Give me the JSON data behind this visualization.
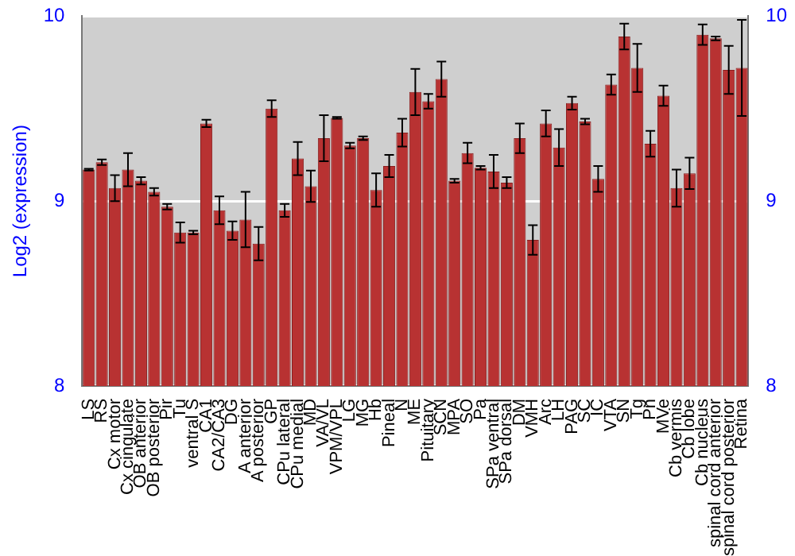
{
  "chart_data": {
    "type": "bar",
    "ylabel": "Log2 (expression)",
    "categories": [
      "LS",
      "RS",
      "Cx motor",
      "Cx cingulate",
      "OB anterior",
      "OB posterior",
      "Pir",
      "Tu",
      "ventral S",
      "CA1",
      "CA2/CA3",
      "DG",
      "A anterior",
      "A posterior",
      "GP",
      "CPu lateral",
      "CPu medial",
      "MD",
      "VA/VL",
      "VPM/VPL",
      "LG",
      "MG",
      "Hb",
      "Pineal",
      "N",
      "ME",
      "Pituitary",
      "SCN",
      "MPA",
      "SO",
      "Pa",
      "SPa ventral",
      "SPa dorsal",
      "DM",
      "VMH",
      "Arc",
      "LH",
      "PAG",
      "SC",
      "IC",
      "VTA",
      "SN",
      "Tg",
      "Pn",
      "MVe",
      "Cb vermis",
      "Cb lobe",
      "Cb nucleus",
      "spinal cord anterior",
      "spinal cord posterior",
      "Retina"
    ],
    "values": [
      9.17,
      9.21,
      9.07,
      9.17,
      9.11,
      9.05,
      8.97,
      8.83,
      8.83,
      9.42,
      8.95,
      8.84,
      8.9,
      8.77,
      9.5,
      8.95,
      9.23,
      9.08,
      9.34,
      9.45,
      9.3,
      9.34,
      9.06,
      9.19,
      9.37,
      9.59,
      9.54,
      9.66,
      9.11,
      9.26,
      9.18,
      9.16,
      9.1,
      9.34,
      8.79,
      9.42,
      9.29,
      9.53,
      9.43,
      9.12,
      9.63,
      9.89,
      9.72,
      9.31,
      9.57,
      9.07,
      9.15,
      9.9,
      9.88,
      9.71,
      9.72
    ],
    "errors": [
      0.005,
      0.015,
      0.07,
      0.09,
      0.02,
      0.02,
      0.015,
      0.055,
      0.01,
      0.02,
      0.075,
      0.05,
      0.15,
      0.09,
      0.045,
      0.035,
      0.09,
      0.085,
      0.125,
      0.005,
      0.015,
      0.01,
      0.09,
      0.06,
      0.075,
      0.125,
      0.04,
      0.095,
      0.01,
      0.055,
      0.01,
      0.09,
      0.03,
      0.08,
      0.08,
      0.07,
      0.1,
      0.035,
      0.015,
      0.07,
      0.055,
      0.07,
      0.13,
      0.07,
      0.055,
      0.1,
      0.085,
      0.055,
      0.01,
      0.13,
      0.26
    ],
    "color": "#b83232",
    "ylim": [
      8,
      10
    ],
    "yticks": [
      8,
      9,
      10
    ],
    "y2lim": [
      8,
      10
    ],
    "y2ticks": [
      8,
      9,
      10
    ],
    "grid": "y",
    "legend": false
  }
}
